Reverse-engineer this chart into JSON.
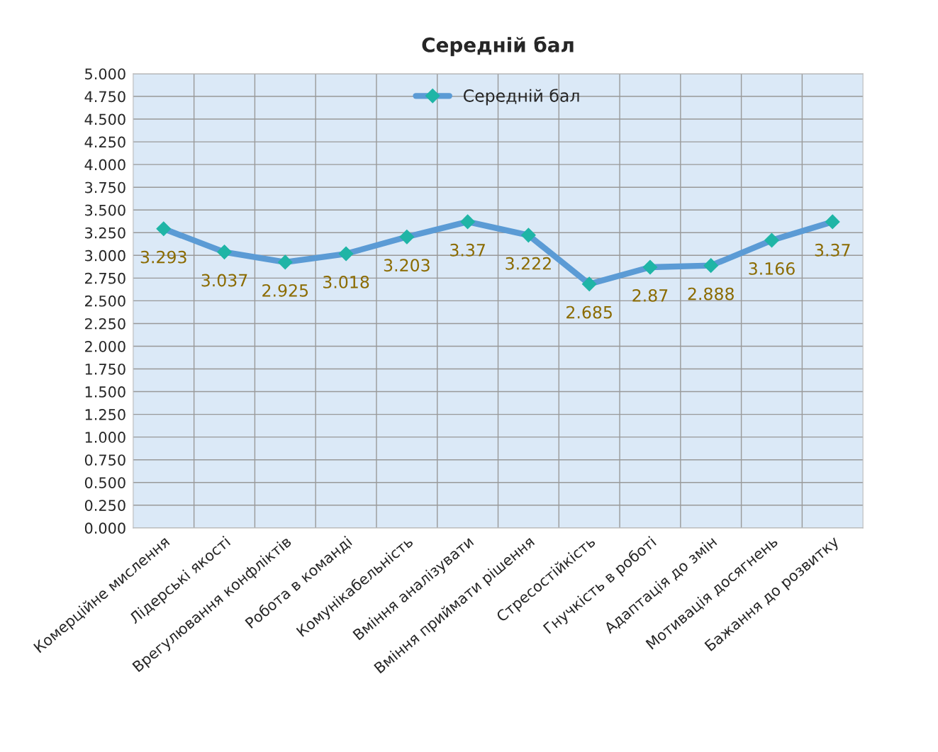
{
  "chart_data": {
    "type": "line",
    "title": "Середній бал",
    "categories": [
      "Комерційне мислення",
      "Лідерські якості",
      "Врегулювання конфліктів",
      "Робота в команді",
      "Комунікабельність",
      "Вміння аналізувати",
      "Вміння приймати рішення",
      "Стресостійкість",
      "Гнучкість в роботі",
      "Адаптація до змін",
      "Мотивація досягнень",
      "Бажання до розвитку"
    ],
    "series": [
      {
        "name": "Середній бал",
        "color": "#5b9bd5",
        "values": [
          3.293,
          3.037,
          2.925,
          3.018,
          3.203,
          3.37,
          3.222,
          2.685,
          2.87,
          2.888,
          3.166,
          3.37
        ]
      }
    ],
    "ylim": [
      0,
      5
    ],
    "yticks": [
      {
        "value": 0,
        "label": "0.000"
      },
      {
        "value": 0.25,
        "label": "0.250"
      },
      {
        "value": 0.5,
        "label": "0.500"
      },
      {
        "value": 0.75,
        "label": "0.750"
      },
      {
        "value": 1,
        "label": "1.000"
      },
      {
        "value": 1.25,
        "label": "1.250"
      },
      {
        "value": 1.5,
        "label": "1.500"
      },
      {
        "value": 1.75,
        "label": "1.750"
      },
      {
        "value": 2,
        "label": "2.000"
      },
      {
        "value": 2.25,
        "label": "2.250"
      },
      {
        "value": 2.5,
        "label": "2.500"
      },
      {
        "value": 2.75,
        "label": "2.750"
      },
      {
        "value": 3,
        "label": "3.000"
      },
      {
        "value": 3.25,
        "label": "3.250"
      },
      {
        "value": 3.5,
        "label": "3.500"
      },
      {
        "value": 3.75,
        "label": "3.750"
      },
      {
        "value": 4,
        "label": "4.000"
      },
      {
        "value": 4.25,
        "label": "4.250"
      },
      {
        "value": 4.5,
        "label": "4.500"
      },
      {
        "value": 4.75,
        "label": "4.750"
      },
      {
        "value": 5,
        "label": "5.000"
      }
    ],
    "grid": true,
    "legend": "top",
    "marker": "diamond",
    "line_style": "solid",
    "data_labels": true
  }
}
